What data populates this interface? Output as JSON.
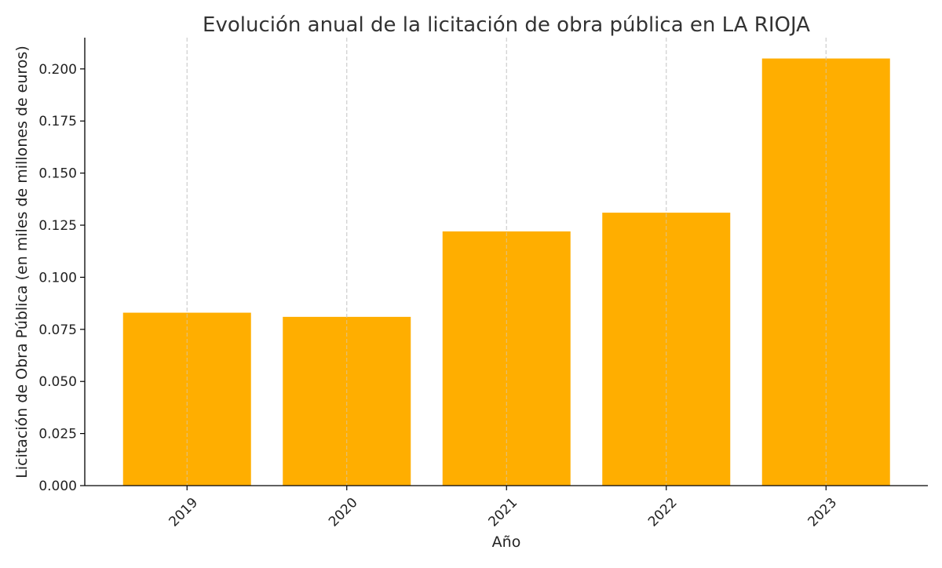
{
  "chart_data": {
    "type": "bar",
    "title": "Evolución anual de la licitación de obra pública en LA RIOJA",
    "xlabel": "Año",
    "ylabel": "Licitación de Obra Pública (en miles de millones de euros)",
    "categories": [
      "2019",
      "2020",
      "2021",
      "2022",
      "2023"
    ],
    "values": [
      0.083,
      0.081,
      0.122,
      0.131,
      0.205
    ],
    "ylim": [
      0,
      0.215
    ],
    "yticks": [
      0,
      0.025,
      0.05,
      0.075,
      0.1,
      0.125,
      0.15,
      0.175,
      0.2
    ],
    "ytick_labels": [
      "0.000",
      "0.025",
      "0.050",
      "0.075",
      "0.100",
      "0.125",
      "0.150",
      "0.175",
      "0.200"
    ],
    "grid": "x-dashed",
    "legend": "none",
    "bar_color": "#FFAE00",
    "grid_color": "#cccccc",
    "axis_color": "#000000"
  }
}
